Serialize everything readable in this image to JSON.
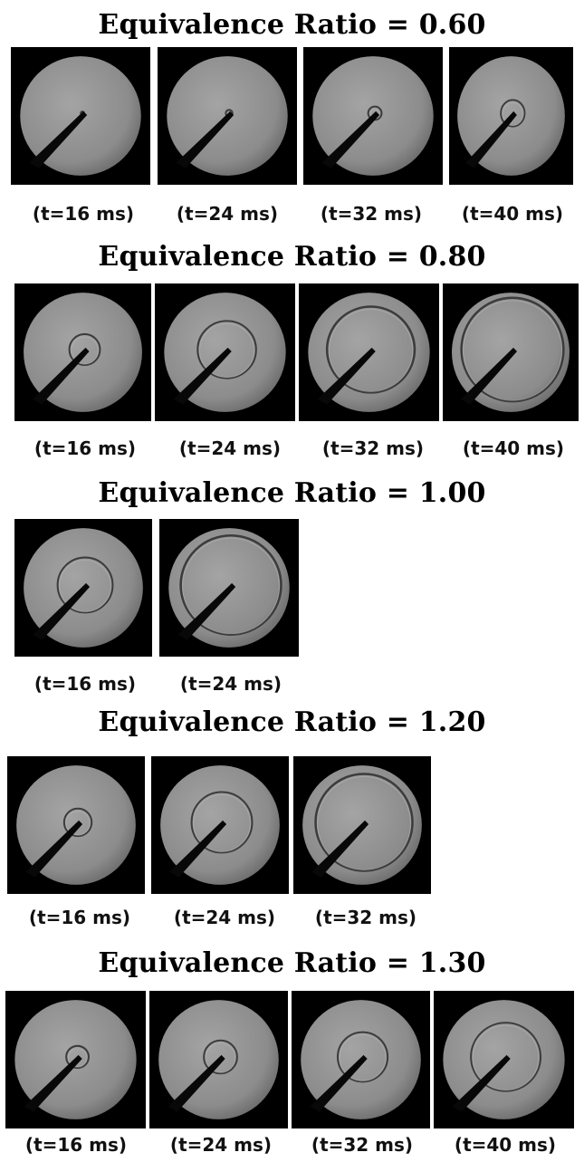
{
  "panels": [
    {
      "title": "Equivalence Ratio = 0.60",
      "frames": [
        {
          "time": "(t=16 ms)",
          "flame_radius": 0.03
        },
        {
          "time": "(t=24 ms)",
          "flame_radius": 0.06
        },
        {
          "time": "(t=32 ms)",
          "flame_radius": 0.12
        },
        {
          "time": "(t=40 ms)",
          "flame_radius": 0.24
        }
      ]
    },
    {
      "title": "Equivalence Ratio = 0.80",
      "frames": [
        {
          "time": "(t=16 ms)",
          "flame_radius": 0.28
        },
        {
          "time": "(t=24 ms)",
          "flame_radius": 0.52
        },
        {
          "time": "(t=32 ms)",
          "flame_radius": 0.78
        },
        {
          "time": "(t=40 ms)",
          "flame_radius": 0.94
        }
      ]
    },
    {
      "title": "Equivalence Ratio = 1.00",
      "frames": [
        {
          "time": "(t=16 ms)",
          "flame_radius": 0.5
        },
        {
          "time": "(t=24 ms)",
          "flame_radius": 0.9
        }
      ]
    },
    {
      "title": "Equivalence Ratio = 1.20",
      "frames": [
        {
          "time": "(t=16 ms)",
          "flame_radius": 0.25
        },
        {
          "time": "(t=24 ms)",
          "flame_radius": 0.55
        },
        {
          "time": "(t=32 ms)",
          "flame_radius": 0.88
        }
      ]
    },
    {
      "title": "Equivalence Ratio = 1.30",
      "frames": [
        {
          "time": "(t=16 ms)",
          "flame_radius": 0.2
        },
        {
          "time": "(t=24 ms)",
          "flame_radius": 0.3
        },
        {
          "time": "(t=32 ms)",
          "flame_radius": 0.45
        },
        {
          "time": "(t=40 ms)",
          "flame_radius": 0.62
        }
      ]
    }
  ],
  "colors": {
    "background": "#000000",
    "chamber": "#8c8c8c",
    "electrode": "#080808",
    "flame_front": "#3c3c3c"
  }
}
